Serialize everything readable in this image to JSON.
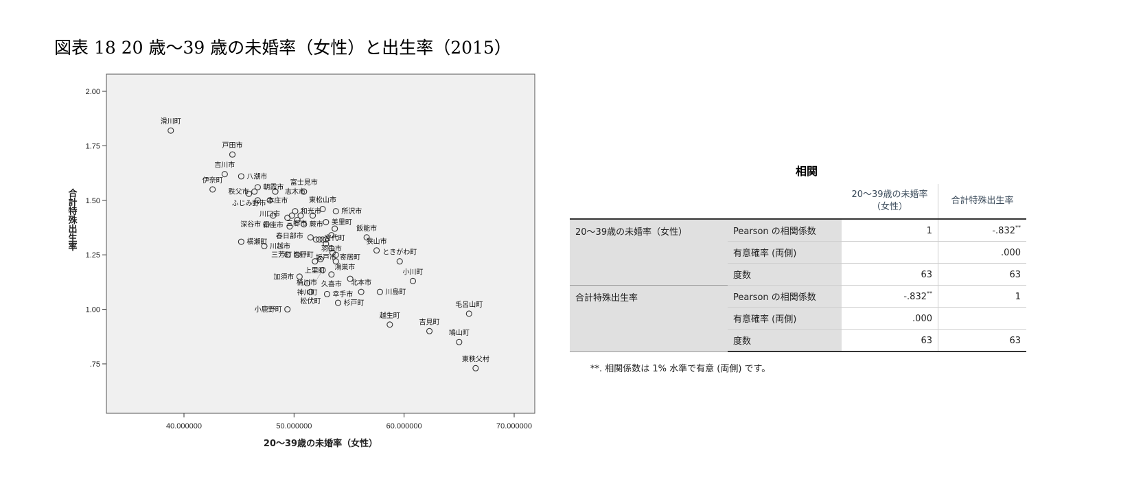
{
  "title": "図表 18 20 歳〜39 歳の未婚率（女性）と出生率（2015）",
  "chart_data": {
    "type": "scatter",
    "xlabel": "20〜39歳の未婚率（女性）",
    "ylabel": "合計特殊出生率",
    "xlim": [
      33,
      74
    ],
    "ylim": [
      0.54,
      2.08
    ],
    "xticks": [
      "40.000000",
      "50.000000",
      "60.000000",
      "70.000000"
    ],
    "xtick_values": [
      40,
      50,
      60,
      70
    ],
    "yticks": [
      "2.00",
      "1.75",
      "1.50",
      "1.25",
      "1.00",
      ".75"
    ],
    "ytick_values": [
      2.0,
      1.75,
      1.5,
      1.25,
      1.0,
      0.75
    ],
    "grid": false,
    "points": [
      {
        "x": 38.8,
        "y": 1.82,
        "label": "滑川町"
      },
      {
        "x": 44.4,
        "y": 1.71,
        "label": "戸田市"
      },
      {
        "x": 43.7,
        "y": 1.62,
        "label": "吉川市"
      },
      {
        "x": 45.2,
        "y": 1.61,
        "label": "八潮市"
      },
      {
        "x": 42.6,
        "y": 1.55,
        "label": "伊奈町"
      },
      {
        "x": 46.7,
        "y": 1.56,
        "label": "朝霞市"
      },
      {
        "x": 46.4,
        "y": 1.54,
        "label": "秩父市"
      },
      {
        "x": 45.9,
        "y": 1.53,
        "label": "ふじみ野市"
      },
      {
        "x": 46.7,
        "y": 1.5,
        "label": "本庄市"
      },
      {
        "x": 47.8,
        "y": 1.5,
        "label": "川口市"
      },
      {
        "x": 48.3,
        "y": 1.54,
        "label": "志木市"
      },
      {
        "x": 50.9,
        "y": 1.54,
        "label": "富士見市"
      },
      {
        "x": 50.1,
        "y": 1.45,
        "label": "和光市"
      },
      {
        "x": 52.6,
        "y": 1.46,
        "label": "東松山市"
      },
      {
        "x": 53.8,
        "y": 1.45,
        "label": "所沢市"
      },
      {
        "x": 52.9,
        "y": 1.4,
        "label": "美里町"
      },
      {
        "x": 48.1,
        "y": 1.43,
        "label": "新座市"
      },
      {
        "x": 49.4,
        "y": 1.42,
        "label": "三郷市"
      },
      {
        "x": 49.8,
        "y": 1.43,
        "label": ""
      },
      {
        "x": 50.3,
        "y": 1.41,
        "label": ""
      },
      {
        "x": 50.6,
        "y": 1.43,
        "label": ""
      },
      {
        "x": 51.7,
        "y": 1.43,
        "label": ""
      },
      {
        "x": 47.5,
        "y": 1.39,
        "label": "深谷市"
      },
      {
        "x": 50.9,
        "y": 1.39,
        "label": "蕨市"
      },
      {
        "x": 49.6,
        "y": 1.38,
        "label": "春日部市"
      },
      {
        "x": 53.7,
        "y": 1.37,
        "label": "宮代町"
      },
      {
        "x": 53.4,
        "y": 1.34,
        "label": "羽生市"
      },
      {
        "x": 56.6,
        "y": 1.33,
        "label": "飯能市"
      },
      {
        "x": 51.5,
        "y": 1.33,
        "label": ""
      },
      {
        "x": 45.2,
        "y": 1.31,
        "label": "横瀬町"
      },
      {
        "x": 47.3,
        "y": 1.29,
        "label": "川越市"
      },
      {
        "x": 52.0,
        "y": 1.32,
        "label": ""
      },
      {
        "x": 52.3,
        "y": 1.32,
        "label": ""
      },
      {
        "x": 52.6,
        "y": 1.32,
        "label": ""
      },
      {
        "x": 52.9,
        "y": 1.32,
        "label": ""
      },
      {
        "x": 52.9,
        "y": 1.3,
        "label": "坂戸市"
      },
      {
        "x": 53.4,
        "y": 1.28,
        "label": ""
      },
      {
        "x": 53.5,
        "y": 1.26,
        "label": ""
      },
      {
        "x": 53.8,
        "y": 1.25,
        "label": "寄居町"
      },
      {
        "x": 49.4,
        "y": 1.25,
        "label": "皆野町"
      },
      {
        "x": 50.3,
        "y": 1.25,
        "label": "三芳町"
      },
      {
        "x": 52.4,
        "y": 1.23,
        "label": ""
      },
      {
        "x": 51.9,
        "y": 1.22,
        "label": "上里町"
      },
      {
        "x": 53.8,
        "y": 1.22,
        "label": "鴻巣市"
      },
      {
        "x": 57.5,
        "y": 1.27,
        "label": "狭山市"
      },
      {
        "x": 59.6,
        "y": 1.22,
        "label": "ときがわ町"
      },
      {
        "x": 53.4,
        "y": 1.16,
        "label": "久喜市"
      },
      {
        "x": 52.6,
        "y": 1.18,
        "label": "桶川市"
      },
      {
        "x": 55.1,
        "y": 1.14,
        "label": ""
      },
      {
        "x": 60.8,
        "y": 1.13,
        "label": "小川町"
      },
      {
        "x": 50.5,
        "y": 1.15,
        "label": "加須市"
      },
      {
        "x": 51.2,
        "y": 1.12,
        "label": "神川町"
      },
      {
        "x": 51.5,
        "y": 1.08,
        "label": "松伏町"
      },
      {
        "x": 53.0,
        "y": 1.07,
        "label": "幸手市"
      },
      {
        "x": 56.1,
        "y": 1.08,
        "label": "北本市"
      },
      {
        "x": 57.8,
        "y": 1.08,
        "label": "川島町"
      },
      {
        "x": 54.0,
        "y": 1.03,
        "label": "杉戸町"
      },
      {
        "x": 49.4,
        "y": 1.0,
        "label": "小鹿野町"
      },
      {
        "x": 58.7,
        "y": 0.93,
        "label": "越生町"
      },
      {
        "x": 62.3,
        "y": 0.9,
        "label": "吉見町"
      },
      {
        "x": 65.9,
        "y": 0.98,
        "label": "毛呂山町"
      },
      {
        "x": 65.0,
        "y": 0.85,
        "label": "鳩山町"
      },
      {
        "x": 66.5,
        "y": 0.73,
        "label": "東秩父村"
      }
    ]
  },
  "table": {
    "title": "相関",
    "col_headers": [
      "20〜39歳の未婚率（女性）",
      "合計特殊出生率"
    ],
    "groups": [
      {
        "name": "20〜39歳の未婚率（女性）",
        "rows": [
          {
            "stat": "Pearson の相関係数",
            "v1": "1",
            "v2": "-.832",
            "v2_mark": "**",
            "v1_mark": ""
          },
          {
            "stat": "有意確率 (両側)",
            "v1": "",
            "v2": ".000",
            "v1_mark": "",
            "v2_mark": ""
          },
          {
            "stat": "度数",
            "v1": "63",
            "v2": "63",
            "v1_mark": "",
            "v2_mark": ""
          }
        ]
      },
      {
        "name": "合計特殊出生率",
        "rows": [
          {
            "stat": "Pearson の相関係数",
            "v1": "-.832",
            "v1_mark": "**",
            "v2": "1",
            "v2_mark": ""
          },
          {
            "stat": "有意確率 (両側)",
            "v1": ".000",
            "v2": "",
            "v1_mark": "",
            "v2_mark": ""
          },
          {
            "stat": "度数",
            "v1": "63",
            "v2": "63",
            "v1_mark": "",
            "v2_mark": ""
          }
        ]
      }
    ],
    "footnote": "**. 相関係数は 1% 水準で有意 (両側) です。"
  },
  "colors": {
    "plot_bg": "#f0f0f0",
    "marker": "#333333",
    "header_text": "#3a4a5a",
    "row_header_bg": "#e0e0e0"
  }
}
